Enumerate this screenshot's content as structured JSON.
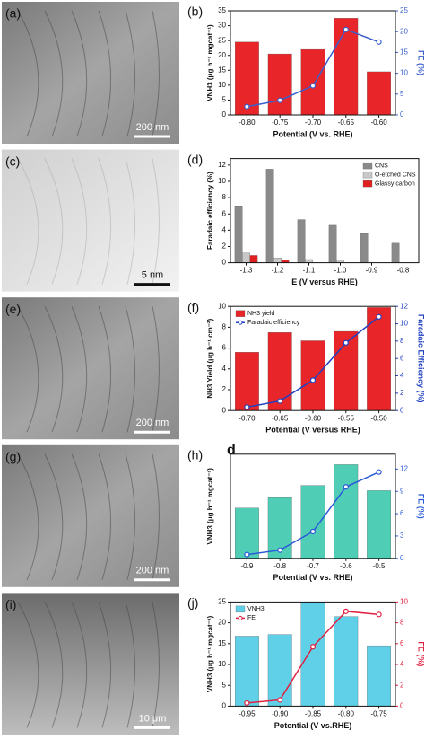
{
  "images": [
    {
      "label": "(a)",
      "scale_bar": "200 nm"
    },
    {
      "label": "(c)",
      "scale_bar": "5 nm"
    },
    {
      "label": "(e)",
      "scale_bar": "200 nm"
    },
    {
      "label": "(g)",
      "scale_bar": "200 nm"
    },
    {
      "label": "(i)",
      "scale_bar": "10 μm"
    }
  ],
  "chart_data": [
    {
      "type": "combo",
      "panel_label": "(b)",
      "xlabel": "Potential (V vs. RHE)",
      "ylabel": "VNH3 (μg h⁻¹ mgcat⁻¹)",
      "y2label": "FE (%)",
      "categories": [
        "-0.80",
        "-0.75",
        "-0.70",
        "-0.65",
        "-0.60"
      ],
      "ylim": [
        0,
        35
      ],
      "yticks": [
        0,
        5,
        10,
        15,
        20,
        25,
        30,
        35
      ],
      "y2lim": [
        0,
        25
      ],
      "y2ticks": [
        0,
        5,
        10,
        15,
        20,
        25
      ],
      "series": [
        {
          "type": "bar",
          "color": "#e8262a",
          "values": [
            24.5,
            20.5,
            22,
            32.5,
            14.5
          ]
        },
        {
          "type": "line",
          "axis": "y2",
          "color": "#3a5fcd",
          "values": [
            2,
            3.5,
            7,
            20.5,
            17.5
          ]
        }
      ]
    },
    {
      "type": "combo",
      "panel_label": "(d)",
      "xlabel": "E (V versus RHE)",
      "ylabel": "Faradaic efficiency (%)",
      "legend": "upper right",
      "categories": [
        "-1.3",
        "-1.2",
        "-1.1",
        "-1.0",
        "-0.9",
        "-0.8"
      ],
      "ylim": [
        0,
        12.8
      ],
      "yticks": [
        0,
        2,
        4,
        6,
        8,
        10,
        12
      ],
      "series": [
        {
          "type": "bar",
          "name": "CNS",
          "color": "#8a8a8a",
          "values": [
            7,
            11.5,
            5.3,
            4.6,
            3.6,
            2.4
          ]
        },
        {
          "type": "bar",
          "name": "O-etched CNS",
          "color": "#c8c8c8",
          "values": [
            1.2,
            0.6,
            0.4,
            0.3,
            null,
            null
          ]
        },
        {
          "type": "bar",
          "name": "Glassy carbon",
          "color": "#e02020",
          "values": [
            0.9,
            0.3,
            null,
            null,
            null,
            null
          ]
        }
      ]
    },
    {
      "type": "combo",
      "panel_label": "(f)",
      "xlabel": "Potential (V versus RHE)",
      "ylabel": "NH3 Yield (μg h⁻¹ cm⁻²)",
      "y2label": "Faradaic Efficiency (%)",
      "legend": "upper left",
      "categories": [
        "-0.70",
        "-0.65",
        "-0.60",
        "-0.55",
        "-0.50"
      ],
      "ylim": [
        0,
        10
      ],
      "yticks": [
        0,
        2,
        4,
        6,
        8,
        10
      ],
      "y2lim": [
        0,
        12
      ],
      "y2ticks": [
        0,
        2,
        4,
        6,
        8,
        10,
        12
      ],
      "series": [
        {
          "type": "bar",
          "name": "NH3 yield",
          "color": "#e8262a",
          "values": [
            5.6,
            7.5,
            6.7,
            7.6,
            9.9
          ]
        },
        {
          "type": "line",
          "axis": "y2",
          "name": "Faradaic efficiency",
          "color": "#2040c0",
          "values": [
            0.4,
            1.1,
            3.5,
            7.8,
            10.8
          ]
        }
      ]
    },
    {
      "type": "combo",
      "panel_label": "(h)",
      "annotation": "d",
      "xlabel": "Potential (V vs. RHE)",
      "ylabel": "VNH3 (μg h⁻¹ mgcat⁻¹)",
      "y2label": "FE (%)",
      "categories": [
        "-0.9",
        "-0.8",
        "-0.7",
        "-0.6",
        "-0.5"
      ],
      "ylim": [
        0,
        30
      ],
      "y2lim": [
        0,
        14
      ],
      "y2ticks": [
        0,
        3,
        6,
        9,
        12
      ],
      "series": [
        {
          "type": "bar",
          "color": "#4fcdb5",
          "values": [
            14.5,
            17.5,
            21,
            27,
            19.5
          ]
        },
        {
          "type": "line",
          "axis": "y2",
          "color": "#2a5ad8",
          "values": [
            0.5,
            1.1,
            3.6,
            9.6,
            11.6
          ]
        }
      ]
    },
    {
      "type": "combo",
      "panel_label": "(j)",
      "xlabel": "Potential (V vs.RHE)",
      "ylabel": "VNH3 (μg h⁻¹ mgcat⁻¹)",
      "y2label": "FE (%)",
      "legend": "upper left",
      "categories": [
        "-0.95",
        "-0.90",
        "-0.85",
        "-0.80",
        "-0.75"
      ],
      "ylim": [
        0,
        25
      ],
      "yticks": [
        0,
        5,
        10,
        15,
        20,
        25
      ],
      "y2lim": [
        0,
        10
      ],
      "y2ticks": [
        0,
        2,
        4,
        6,
        8,
        10
      ],
      "series": [
        {
          "type": "bar",
          "name": "VNH3",
          "color": "#5fd0e8",
          "values": [
            16.8,
            17.2,
            25,
            21.5,
            14.5
          ]
        },
        {
          "type": "line",
          "axis": "y2",
          "name": "FE",
          "color": "#e02040",
          "values": [
            0.3,
            0.6,
            5.7,
            9.1,
            8.8
          ]
        }
      ]
    }
  ]
}
